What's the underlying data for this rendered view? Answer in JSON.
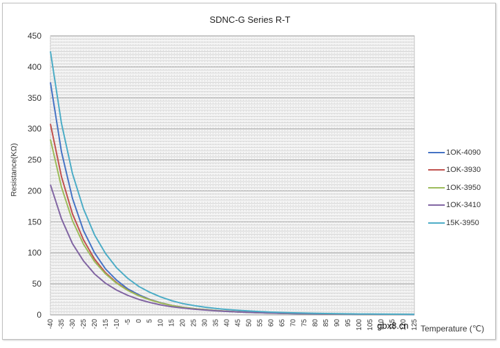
{
  "chart_data": {
    "type": "line",
    "title": "SDNC-G Series R-T",
    "xlabel": "Temperature (℃)",
    "ylabel": "Resistance(KΩ)",
    "ylim": [
      0,
      450
    ],
    "yticks": [
      0,
      50,
      100,
      150,
      200,
      250,
      300,
      350,
      400,
      450
    ],
    "x": [
      -40,
      -35,
      -30,
      -25,
      -20,
      -15,
      -10,
      -5,
      0,
      5,
      10,
      15,
      20,
      25,
      30,
      35,
      40,
      45,
      50,
      55,
      60,
      65,
      70,
      75,
      80,
      85,
      90,
      95,
      100,
      105,
      110,
      115,
      120,
      125
    ],
    "grid": true,
    "legend_position": "right",
    "series": [
      {
        "name": "10K-4090",
        "color": "#4472c4",
        "values": [
          375,
          263,
          188,
          136,
          100,
          74,
          56,
          42,
          32.5,
          25,
          19.5,
          15.3,
          12.1,
          10,
          8.2,
          6.8,
          5.6,
          4.7,
          3.9,
          3.3,
          2.8,
          2.4,
          2.0,
          1.7,
          1.5,
          1.3,
          1.1,
          0.97,
          0.85,
          0.75,
          0.66,
          0.58,
          0.52,
          0.46
        ]
      },
      {
        "name": "10K-3930",
        "color": "#c0504d",
        "values": [
          308,
          223,
          163,
          121,
          90,
          68,
          52,
          40,
          31,
          24.5,
          19.2,
          15.2,
          12.1,
          10,
          8.3,
          6.9,
          5.8,
          4.9,
          4.1,
          3.5,
          3.0,
          2.6,
          2.2,
          1.9,
          1.7,
          1.5,
          1.3,
          1.15,
          1.0,
          0.9,
          0.8,
          0.72,
          0.64,
          0.58
        ]
      },
      {
        "name": "10K-3950",
        "color": "#9bbb59",
        "values": [
          283,
          206,
          152,
          114,
          86,
          66,
          51,
          39.5,
          30.8,
          24.3,
          19.2,
          15.2,
          12.1,
          10,
          8.3,
          6.9,
          5.8,
          4.9,
          4.1,
          3.5,
          3.0,
          2.6,
          2.2,
          1.9,
          1.7,
          1.5,
          1.3,
          1.15,
          1.0,
          0.9,
          0.8,
          0.72,
          0.64,
          0.58
        ]
      },
      {
        "name": "10K-3410",
        "color": "#8064a2",
        "values": [
          210,
          155,
          115,
          87,
          66,
          51,
          40,
          31.5,
          25,
          20,
          16,
          13,
          11,
          9.2,
          7.8,
          6.6,
          5.6,
          4.8,
          4.1,
          3.5,
          3.0,
          2.6,
          2.3,
          2.0,
          1.8,
          1.6,
          1.4,
          1.25,
          1.1,
          1.0,
          0.9,
          0.8,
          0.72,
          0.65
        ]
      },
      {
        "name": "15K-3950",
        "color": "#4bacc6",
        "values": [
          425,
          309,
          228,
          171,
          129,
          99,
          76,
          59,
          46,
          36.5,
          28.8,
          22.8,
          18.2,
          15,
          12.4,
          10.4,
          8.7,
          7.3,
          6.2,
          5.3,
          4.5,
          3.9,
          3.3,
          2.9,
          2.5,
          2.2,
          1.9,
          1.7,
          1.5,
          1.35,
          1.2,
          1.08,
          0.96,
          0.87
        ]
      }
    ]
  },
  "legend": {
    "items": [
      {
        "label": "1OK-4090",
        "color": "#4472c4"
      },
      {
        "label": "1OK-3930",
        "color": "#c0504d"
      },
      {
        "label": "1OK-3950",
        "color": "#9bbb59"
      },
      {
        "label": "1OK-3410",
        "color": "#8064a2"
      },
      {
        "label": "15K-3950",
        "color": "#4bacc6"
      }
    ]
  },
  "watermark": "gbx8.cn",
  "axis": {
    "x_title": "Temperature (℃)",
    "y_title": "Resistance(KΩ)"
  }
}
